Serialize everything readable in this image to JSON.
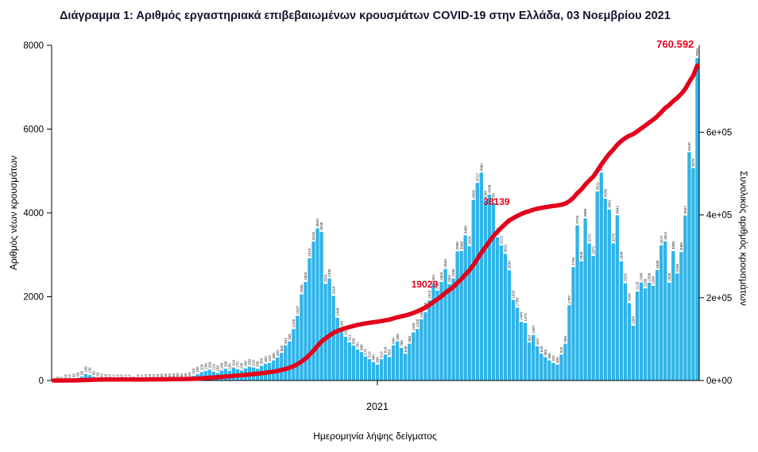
{
  "chart": {
    "title": "Διάγραμμα 1: Αριθμός εργαστηριακά επιβεβαιωμένων κρουσμάτων COVID-19 στην Ελλάδα, 03 Νοεμβρίου 2021",
    "ylabel_left": "Αριθμός νέων κρουσμάτων",
    "ylabel_right": "Συνολικός αριθμός κρουσμάτων",
    "xlabel": "Ημερομηνία λήψης δείγματος",
    "colors": {
      "bar": "#2FB4E8",
      "line": "#E3001B",
      "annotation": "#E3001B",
      "title": "#141432",
      "axis": "#000000",
      "bar_label": "#1a1a1a"
    }
  },
  "chart_data": {
    "type": "bar",
    "title": "Διάγραμμα 1: Αριθμός εργαστηριακά επιβεβαιωμένων κρουσμάτων COVID-19 στην Ελλάδα, 03 Νοεμβρίου 2021",
    "xlabel": "Ημερομηνία λήψης δείγματος",
    "ylabel": "Αριθμός νέων κρουσμάτων",
    "ylabel_right": "Συνολικός αριθμός κρουσμάτων",
    "x_range": [
      "2020-02",
      "2021-11-03"
    ],
    "x_tick_labels": [
      "2021"
    ],
    "x_tick_fraction": 0.503,
    "left_axis": {
      "ticks": [
        0,
        2000,
        4000,
        6000,
        8000
      ],
      "max": 8000
    },
    "right_axis": {
      "ticks": [
        "0e+00",
        "2e+05",
        "4e+05",
        "6e+05"
      ],
      "tick_values": [
        0,
        200000,
        400000,
        600000
      ],
      "max": 810000
    },
    "daily_values": [
      1,
      3,
      7,
      10,
      21,
      35,
      60,
      95,
      156,
      130,
      90,
      60,
      33,
      20,
      15,
      12,
      10,
      15,
      12,
      10,
      8,
      10,
      12,
      15,
      18,
      22,
      25,
      30,
      28,
      35,
      40,
      50,
      35,
      45,
      60,
      110,
      150,
      200,
      230,
      260,
      210,
      180,
      240,
      280,
      230,
      310,
      270,
      240,
      290,
      330,
      310,
      280,
      350,
      400,
      420,
      480,
      550,
      660,
      841,
      935,
      1228,
      1547,
      2056,
      2353,
      2919,
      3316,
      3633,
      3548,
      2311,
      2435,
      2018,
      1498,
      1194,
      1044,
      912,
      835,
      741,
      680,
      575,
      510,
      440,
      380,
      510,
      620,
      560,
      840,
      935,
      780,
      640,
      880,
      1150,
      1228,
      1460,
      1630,
      1913,
      2301,
      2147,
      2353,
      2663,
      2301,
      2435,
      3080,
      3089,
      3465,
      3209,
      4309,
      4717,
      4961,
      4298,
      4438,
      4239,
      3421,
      3222,
      3022,
      2630,
      1925,
      1738,
      1400,
      1374,
      907,
      1087,
      820,
      640,
      560,
      480,
      420,
      380,
      620,
      880,
      1797,
      2706,
      3703,
      2845,
      3868,
      3272,
      2972,
      4511,
      4962,
      4339,
      4081,
      3273,
      3942,
      2846,
      2320,
      1849,
      1305,
      2125,
      2340,
      2198,
      2336,
      2260,
      2636,
      3227,
      3321,
      2335,
      3089,
      2556,
      3065,
      3937,
      5449,
      5070,
      7693
    ],
    "cumulative_final": 760592,
    "annotations": [
      {
        "text": "19029",
        "x": 0.576,
        "y": 0.723
      },
      {
        "text": "38139",
        "x": 0.687,
        "y": 0.476
      },
      {
        "text": "760.592",
        "x": 0.963,
        "y": 0.007
      }
    ],
    "legend": "none",
    "grid": "off"
  }
}
